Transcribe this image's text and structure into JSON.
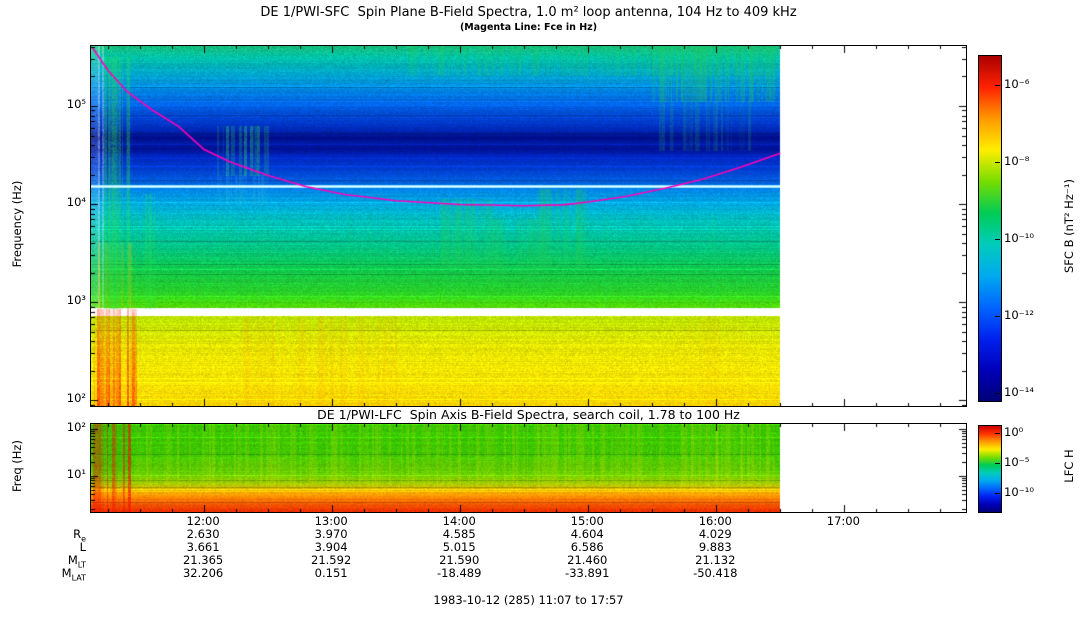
{
  "titles": {
    "main": "DE 1/PWI-SFC  Spin Plane B-Field Spectra, 1.0 m² loop antenna, 104 Hz to 409 kHz",
    "sub": "(Magenta Line: Fce in Hz)",
    "lfc": "DE 1/PWI-LFC  Spin Axis B-Field Spectra, search coil, 1.78 to 100 Hz"
  },
  "axes": {
    "sfc_y_label": "Frequency (Hz)",
    "lfc_y_label": "Freq (Hz)"
  },
  "colorbars": {
    "sfc": {
      "label": "SFC B (nT² Hz⁻¹)",
      "ticks": [
        {
          "label": "10⁻⁶",
          "f": 0.087
        },
        {
          "label": "10⁻⁸",
          "f": 0.31
        },
        {
          "label": "10⁻¹⁰",
          "f": 0.533
        },
        {
          "label": "10⁻¹²",
          "f": 0.757
        },
        {
          "label": "10⁻¹⁴",
          "f": 0.98
        }
      ]
    },
    "lfc": {
      "label": "LFC H",
      "ticks": [
        {
          "label": "10⁰",
          "f": 0.09
        },
        {
          "label": "10⁻⁵",
          "f": 0.44
        },
        {
          "label": "10⁻¹⁰",
          "f": 0.79
        }
      ]
    }
  },
  "ephemeris": {
    "rows": [
      {
        "main": "R",
        "sub": "e",
        "values": [
          "2.630",
          "3.970",
          "4.585",
          "4.604",
          "4.029"
        ]
      },
      {
        "main": "L",
        "sub": "",
        "values": [
          "3.661",
          "3.904",
          "5.015",
          "6.586",
          "9.883"
        ]
      },
      {
        "main": "M",
        "sub": "LT",
        "values": [
          "21.365",
          "21.592",
          "21.590",
          "21.460",
          "21.132"
        ]
      },
      {
        "main": "M",
        "sub": "LAT",
        "values": [
          "32.206",
          "0.151",
          "-18.489",
          "-33.891",
          "-50.418"
        ]
      }
    ],
    "footer": "1983-10-12 (285) 11:07 to 17:57"
  },
  "chart_data": [
    {
      "type": "heatmap",
      "name": "SFC spin-plane B-field spectrogram",
      "x_range_hours": [
        11.1167,
        17.95
      ],
      "data_end_hour": 16.5,
      "x_ticks": [
        {
          "label": "12:00",
          "hour": 12
        },
        {
          "label": "13:00",
          "hour": 13
        },
        {
          "label": "14:00",
          "hour": 14
        },
        {
          "label": "15:00",
          "hour": 15
        },
        {
          "label": "16:00",
          "hour": 16
        },
        {
          "label": "17:00",
          "hour": 17
        }
      ],
      "y_log_range": [
        1.94,
        5.612
      ],
      "y_ticks": [
        {
          "label": "10⁵",
          "logf": 5
        },
        {
          "label": "10⁴",
          "logf": 4
        },
        {
          "label": "10³",
          "logf": 3
        },
        {
          "label": "10²",
          "logf": 2
        }
      ],
      "white_gap_log": [
        2.86,
        2.94
      ],
      "cyan_line_log": 4.18,
      "colormap": [
        "#aa0000",
        "#ff2200",
        "#ff9900",
        "#ffee00",
        "#77dd00",
        "#00cc55",
        "#00ccbb",
        "#00aaee",
        "#0066ff",
        "#0022ee",
        "#0000bb",
        "#000077"
      ],
      "freq_color_stops": [
        [
          1.94,
          "#ffd800"
        ],
        [
          2.2,
          "#fae400"
        ],
        [
          2.55,
          "#e8e800"
        ],
        [
          2.86,
          "#b8e000"
        ],
        [
          2.94,
          "#55d800"
        ],
        [
          3.1,
          "#2ad226"
        ],
        [
          3.35,
          "#0fca50"
        ],
        [
          3.6,
          "#00c48e"
        ],
        [
          3.85,
          "#00bcc0"
        ],
        [
          4.0,
          "#00aadf"
        ],
        [
          4.12,
          "#0090e8"
        ],
        [
          4.22,
          "#0064e4"
        ],
        [
          4.35,
          "#0040d4"
        ],
        [
          4.5,
          "#0024bc"
        ],
        [
          4.57,
          "#001096"
        ],
        [
          4.62,
          "#001ca8"
        ],
        [
          4.68,
          "#000c88"
        ],
        [
          4.76,
          "#0028b8"
        ],
        [
          4.9,
          "#0048d8"
        ],
        [
          5.05,
          "#0068e4"
        ],
        [
          5.2,
          "#008ce0"
        ],
        [
          5.35,
          "#00accc"
        ],
        [
          5.5,
          "#00c0a8"
        ],
        [
          5.62,
          "#18c47c"
        ]
      ],
      "fce_line_hz": [
        [
          11.13,
          390000
        ],
        [
          11.25,
          230000
        ],
        [
          11.4,
          140000
        ],
        [
          11.6,
          90000
        ],
        [
          11.8,
          62000
        ],
        [
          12.0,
          36000
        ],
        [
          12.2,
          27000
        ],
        [
          12.5,
          19500
        ],
        [
          12.8,
          15000
        ],
        [
          13.1,
          12500
        ],
        [
          13.5,
          10800
        ],
        [
          14.0,
          9900
        ],
        [
          14.5,
          9600
        ],
        [
          14.8,
          9800
        ],
        [
          15.0,
          10500
        ],
        [
          15.3,
          12000
        ],
        [
          15.6,
          14500
        ],
        [
          15.9,
          18000
        ],
        [
          16.2,
          24000
        ],
        [
          16.5,
          33000
        ]
      ],
      "features": [
        {
          "t": [
            11.12,
            11.21
          ],
          "logf": [
            2.94,
            5.612
          ],
          "color": "#d8f8ff",
          "alpha": 0.55,
          "density": 0.9
        },
        {
          "t": [
            11.14,
            11.47
          ],
          "logf": [
            1.94,
            2.93
          ],
          "color": "#ff2800",
          "alpha": 0.92,
          "density": 0.85,
          "grad": true
        },
        {
          "t": [
            11.17,
            11.45
          ],
          "logf": [
            2.94,
            3.6
          ],
          "color": "#ffb400",
          "alpha": 0.4,
          "density": 0.6
        },
        {
          "t": [
            11.22,
            11.44
          ],
          "logf": [
            2.94,
            5.5
          ],
          "color": "#2ce44a",
          "alpha": 0.6,
          "density": 0.5
        },
        {
          "t": [
            11.46,
            11.62
          ],
          "logf": [
            2.94,
            4.1
          ],
          "color": "#2ce44a",
          "alpha": 0.35,
          "density": 0.45
        },
        {
          "t": [
            12.1,
            12.5
          ],
          "logf": [
            4.3,
            4.8
          ],
          "color": "#30dc64",
          "alpha": 0.5,
          "density": 0.7
        },
        {
          "t": [
            12.1,
            12.5
          ],
          "logf": [
            4.0,
            4.3
          ],
          "color": "#40c8e0",
          "alpha": 0.3,
          "density": 0.6
        },
        {
          "t": [
            11.45,
            16.45
          ],
          "logf": [
            2.94,
            3.9
          ],
          "color": "#28d060",
          "alpha": 0.12,
          "density": 0.45
        },
        {
          "t": [
            12.3,
            13.5
          ],
          "logf": [
            1.94,
            2.86
          ],
          "color": "#ff9000",
          "alpha": 0.22,
          "density": 0.5
        },
        {
          "t": [
            13.85,
            14.25
          ],
          "logf": [
            3.35,
            4.05
          ],
          "color": "#24cc50",
          "alpha": 0.42,
          "density": 0.7
        },
        {
          "t": [
            14.25,
            14.62
          ],
          "logf": [
            3.25,
            3.85
          ],
          "color": "#24cc50",
          "alpha": 0.34,
          "density": 0.6
        },
        {
          "t": [
            14.6,
            14.98
          ],
          "logf": [
            3.35,
            4.15
          ],
          "color": "#24cc50",
          "alpha": 0.4,
          "density": 0.65
        },
        {
          "t": [
            13.6,
            16.45
          ],
          "logf": [
            5.32,
            5.612
          ],
          "color": "#22cc55",
          "alpha": 0.35,
          "density": 0.6
        },
        {
          "t": [
            15.5,
            16.45
          ],
          "logf": [
            5.05,
            5.612
          ],
          "color": "#22cc55",
          "alpha": 0.5,
          "density": 0.7
        },
        {
          "t": [
            15.55,
            16.3
          ],
          "logf": [
            4.55,
            5.05
          ],
          "color": "#2ad25a",
          "alpha": 0.22,
          "density": 0.5
        },
        {
          "t": [
            15.6,
            16.2
          ],
          "logf": [
            1.94,
            2.86
          ],
          "color": "#ff9000",
          "alpha": 0.15,
          "density": 0.45
        }
      ]
    },
    {
      "type": "heatmap",
      "name": "LFC spin-axis B-field spectrogram",
      "x_range_hours": [
        11.1167,
        17.95
      ],
      "data_end_hour": 16.5,
      "x_ticks": [],
      "y_log_range": [
        0.23,
        2.1
      ],
      "y_ticks": [
        {
          "label": "10²",
          "logf": 2
        },
        {
          "label": "10¹",
          "logf": 1
        }
      ],
      "colormap": [
        "#cc0000",
        "#ff3300",
        "#ff9900",
        "#ffee00",
        "#77dd00",
        "#00cc55",
        "#00ccbb",
        "#00aaee",
        "#0066ff",
        "#0022ee",
        "#0000bb",
        "#000077"
      ],
      "freq_color_stops": [
        [
          0.23,
          "#e82800"
        ],
        [
          0.38,
          "#f85200"
        ],
        [
          0.52,
          "#ff7c00"
        ],
        [
          0.64,
          "#ffa800"
        ],
        [
          0.74,
          "#e0c400"
        ],
        [
          0.86,
          "#9cd000"
        ],
        [
          1.05,
          "#58cc00"
        ],
        [
          1.4,
          "#3cc800"
        ],
        [
          2.1,
          "#34c400"
        ]
      ],
      "features": [
        {
          "t": [
            11.13,
            11.42
          ],
          "logf": [
            0.23,
            2.1
          ],
          "color": "#ee1400",
          "alpha": 0.8,
          "density": 0.55
        },
        {
          "t": [
            11.45,
            16.45
          ],
          "logf": [
            0.78,
            2.1
          ],
          "color": "#f2e800",
          "alpha": 0.25,
          "density": 0.5
        },
        {
          "t": [
            11.45,
            16.45
          ],
          "logf": [
            0.95,
            1.4
          ],
          "color": "#e8e000",
          "alpha": 0.15,
          "density": 0.85
        },
        {
          "t": [
            15.75,
            16.2
          ],
          "logf": [
            0.6,
            2.1
          ],
          "color": "#f2e800",
          "alpha": 0.22,
          "density": 0.6
        }
      ]
    }
  ]
}
